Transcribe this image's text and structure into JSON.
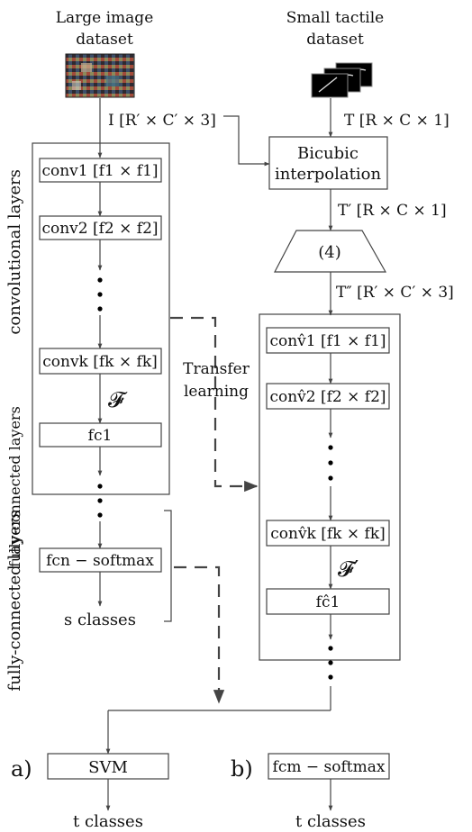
{
  "titles": {
    "large_line1": "Large image",
    "large_line2": "dataset",
    "small_line1": "Small tactile",
    "small_line2": "dataset"
  },
  "dims": {
    "I": "I [R′ × C′ × 3]",
    "T": "T [R × C × 1]",
    "T_prime": "T′ [R × C × 1]",
    "T_dprime": "T″ [R′ × C′ × 3]"
  },
  "bicubic": {
    "line1": "Bicubic",
    "line2": "interpolation"
  },
  "eq_ref": "(4)",
  "left_net": {
    "conv1": "conv1 [f1 × f1]",
    "conv2": "conv2 [f2 × f2]",
    "convk": "convk [fk × fk]",
    "F": "𝓕",
    "fc1": "fc1",
    "fcn": "fcn − softmax",
    "out": "s classes"
  },
  "right_net": {
    "conv1": "conv̂1 [f1 × f1]",
    "conv2": "conv̂2 [f2 × f2]",
    "convk": "conv̂k [fk × fk]",
    "F": "𝓕′",
    "fc1": "fĉ1"
  },
  "side_labels": {
    "conv": "convolutional layers",
    "fc_top": "fully-connected layers",
    "fc_bottom": "fully-connected layers"
  },
  "transfer": {
    "line1": "Transfer",
    "line2": "learning"
  },
  "options": {
    "a_label": "a)",
    "b_label": "b)",
    "svm": "SVM",
    "fcm": "fcm − softmax",
    "a_out": "t classes",
    "b_out": "t classes"
  },
  "icons": [
    "image-mosaic-icon",
    "tactile-stack-icon"
  ]
}
